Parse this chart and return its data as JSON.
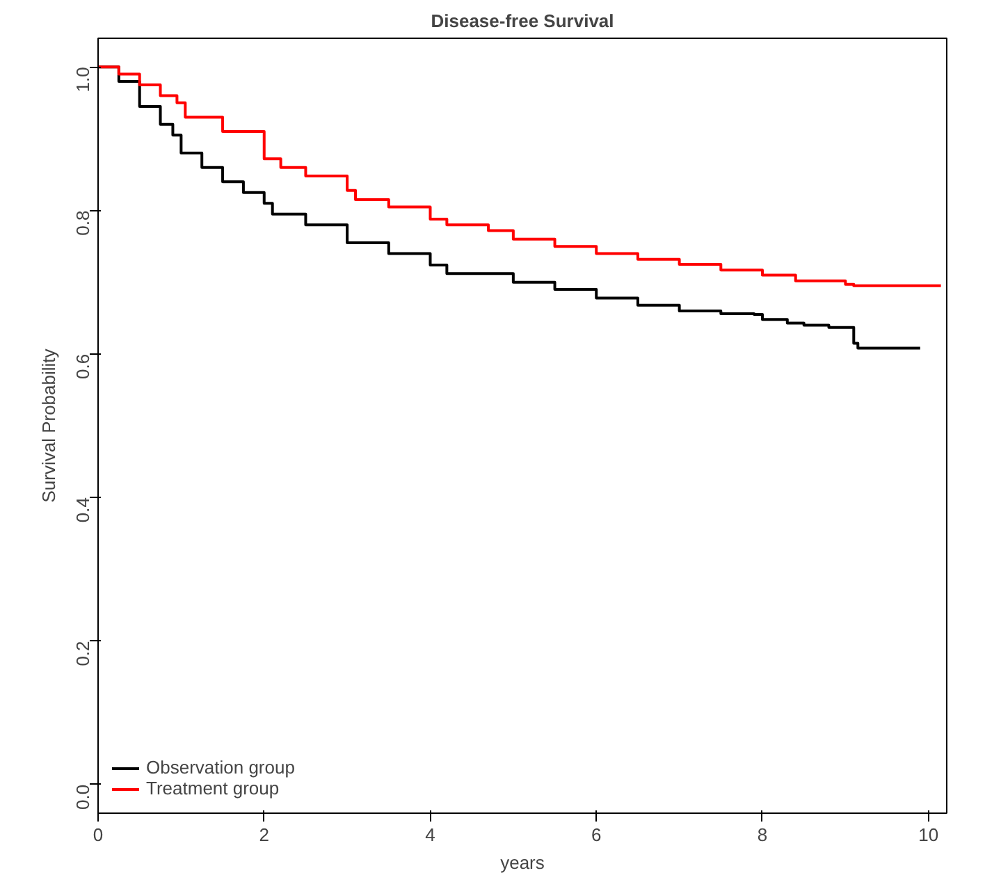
{
  "chart_data": {
    "type": "step",
    "title": "Disease-free Survival",
    "xlabel": "years",
    "ylabel": "Survival Probability",
    "xlim": [
      0,
      10.22
    ],
    "ylim": [
      -0.04,
      1.04
    ],
    "xticks": [
      0,
      2,
      4,
      6,
      8,
      10
    ],
    "yticks": [
      {
        "value": 0,
        "label": "0.0"
      },
      0.2,
      0.4,
      0.6,
      0.8,
      {
        "value": 1,
        "label": "1.0"
      }
    ],
    "grid": false,
    "legend": "bottom left",
    "line_style": "solid",
    "series": [
      {
        "name": "Observation group",
        "color": "#000000",
        "x": [
          0,
          0.25,
          0.5,
          0.75,
          0.9,
          1.0,
          1.25,
          1.5,
          1.75,
          2.0,
          2.1,
          2.5,
          3.0,
          3.5,
          4.0,
          4.2,
          5.0,
          5.5,
          6.0,
          6.5,
          7.0,
          7.5,
          7.9,
          8.0,
          8.3,
          8.5,
          8.8,
          9.05,
          9.1,
          9.15,
          9.9
        ],
        "values": [
          1.0,
          0.98,
          0.945,
          0.92,
          0.905,
          0.88,
          0.86,
          0.84,
          0.825,
          0.81,
          0.795,
          0.78,
          0.755,
          0.74,
          0.724,
          0.712,
          0.7,
          0.69,
          0.678,
          0.668,
          0.66,
          0.656,
          0.655,
          0.648,
          0.643,
          0.64,
          0.637,
          0.637,
          0.615,
          0.608,
          0.608
        ]
      },
      {
        "name": "Treatment group",
        "color": "#ff0000",
        "x": [
          0,
          0.25,
          0.5,
          0.75,
          0.95,
          1.05,
          1.5,
          2.0,
          2.2,
          2.5,
          3.0,
          3.1,
          3.5,
          4.0,
          4.2,
          4.7,
          5.0,
          5.5,
          6.0,
          6.5,
          7.0,
          7.5,
          8.0,
          8.4,
          9.0,
          9.1,
          10.15
        ],
        "values": [
          1.0,
          0.99,
          0.975,
          0.96,
          0.95,
          0.93,
          0.91,
          0.872,
          0.86,
          0.848,
          0.828,
          0.815,
          0.805,
          0.788,
          0.78,
          0.772,
          0.76,
          0.75,
          0.74,
          0.732,
          0.725,
          0.717,
          0.71,
          0.702,
          0.697,
          0.695,
          0.695
        ]
      }
    ]
  }
}
